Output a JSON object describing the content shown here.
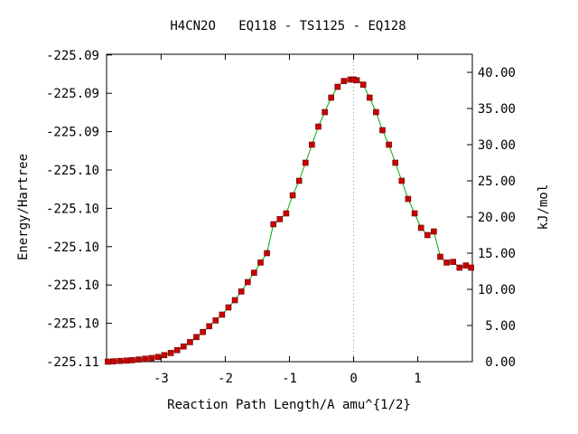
{
  "chart_data": {
    "type": "line",
    "title": "H4CN2O   EQ118 - TS1125 - EQ128",
    "xlabel": "Reaction Path Length/A amu^{1/2}",
    "ylabel_left": "Energy/Hartree",
    "ylabel_right": "kJ/mol",
    "xlim": [
      -3.85,
      1.85
    ],
    "ylim_right": [
      0,
      42.5
    ],
    "x_ticks": [
      -3,
      -2,
      -1,
      0,
      1
    ],
    "left_ticks": [
      {
        "kj": 0,
        "label": "-225.11"
      },
      {
        "kj": 5.3,
        "label": "-225.10"
      },
      {
        "kj": 10.6,
        "label": "-225.10"
      },
      {
        "kj": 15.9,
        "label": "-225.10"
      },
      {
        "kj": 21.2,
        "label": "-225.10"
      },
      {
        "kj": 26.5,
        "label": "-225.10"
      },
      {
        "kj": 31.8,
        "label": "-225.09"
      },
      {
        "kj": 37.1,
        "label": "-225.09"
      },
      {
        "kj": 42.4,
        "label": "-225.09"
      }
    ],
    "right_ticks": [
      {
        "kj": 0,
        "label": "0.00"
      },
      {
        "kj": 5,
        "label": "5.00"
      },
      {
        "kj": 10,
        "label": "10.00"
      },
      {
        "kj": 15,
        "label": "15.00"
      },
      {
        "kj": 20,
        "label": "20.00"
      },
      {
        "kj": 25,
        "label": "25.00"
      },
      {
        "kj": 30,
        "label": "30.00"
      },
      {
        "kj": 35,
        "label": "35.00"
      },
      {
        "kj": 40,
        "label": "40.00"
      }
    ],
    "ts_x": 0,
    "grid": false,
    "line_color": "#00aa00",
    "marker_color": "#cc0000",
    "marker_edge": "#660000",
    "guide_color": "#999999",
    "series": [
      {
        "x": [
          -3.83,
          -3.74,
          -3.64,
          -3.54,
          -3.45,
          -3.35,
          -3.25,
          -3.15,
          -3.05,
          -2.95,
          -2.85,
          -2.75,
          -2.65,
          -2.55,
          -2.45,
          -2.35,
          -2.25,
          -2.15,
          -2.05,
          -1.95,
          -1.85,
          -1.75,
          -1.65,
          -1.55,
          -1.45,
          -1.35,
          -1.25,
          -1.15,
          -1.05,
          -0.95,
          -0.85,
          -0.75,
          -0.65,
          -0.55,
          -0.45,
          -0.35,
          -0.25,
          -0.15,
          -0.05,
          0.0,
          0.05,
          0.15,
          0.25,
          0.35,
          0.45,
          0.55,
          0.65,
          0.75,
          0.85,
          0.95,
          1.05,
          1.15,
          1.25,
          1.35,
          1.45,
          1.55,
          1.65,
          1.75,
          1.83
        ],
        "y": [
          0.0,
          0.05,
          0.1,
          0.15,
          0.2,
          0.3,
          0.4,
          0.5,
          0.65,
          0.9,
          1.2,
          1.6,
          2.1,
          2.7,
          3.4,
          4.1,
          4.9,
          5.7,
          6.5,
          7.5,
          8.5,
          9.7,
          11.0,
          12.3,
          13.7,
          15.0,
          19.0,
          19.7,
          20.5,
          23.0,
          25.0,
          27.5,
          30.0,
          32.5,
          34.5,
          36.5,
          38.0,
          38.8,
          39.0,
          39.0,
          38.9,
          38.3,
          36.5,
          34.5,
          32.0,
          30.0,
          27.5,
          25.0,
          22.5,
          20.5,
          18.5,
          17.5,
          18.0,
          14.5,
          13.7,
          13.8,
          13.0,
          13.3,
          13.0
        ]
      }
    ]
  }
}
